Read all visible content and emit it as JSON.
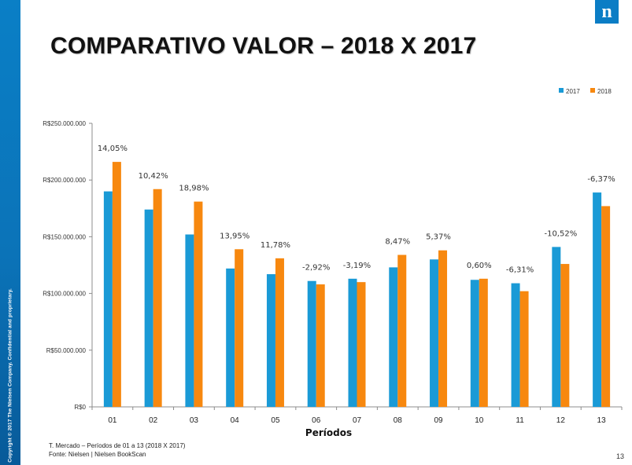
{
  "sidebar": {
    "copyright": "Copyright © 2017 The Nielsen Company. Confidential and proprietary."
  },
  "logo": {
    "text": "n"
  },
  "header": {
    "title": "COMPARATIVO VALOR – 2018 X 2017"
  },
  "colors": {
    "series_2017": "#1a9ad6",
    "series_2018": "#f7880f",
    "brand": "#0b7dc5"
  },
  "chart_data": {
    "type": "bar",
    "title": "",
    "xlabel": "Períodos",
    "ylabel": "",
    "categories": [
      "01",
      "02",
      "03",
      "04",
      "05",
      "06",
      "07",
      "08",
      "09",
      "10",
      "11",
      "12",
      "13"
    ],
    "series": [
      {
        "name": "2017",
        "values": [
          190000000,
          174000000,
          152000000,
          122000000,
          117000000,
          111000000,
          113000000,
          123000000,
          130000000,
          112000000,
          109000000,
          141000000,
          189000000
        ]
      },
      {
        "name": "2018",
        "values": [
          216000000,
          192000000,
          181000000,
          139000000,
          131000000,
          108000000,
          110000000,
          134000000,
          138000000,
          113000000,
          102000000,
          126000000,
          177000000
        ]
      }
    ],
    "data_labels": [
      "14,05%",
      "10,42%",
      "18,98%",
      "13,95%",
      "11,78%",
      "-2,92%",
      "-3,19%",
      "8,47%",
      "5,37%",
      "0,60%",
      "-6,31%",
      "-10,52%",
      "-6,37%"
    ],
    "ylim": [
      0,
      250000000
    ],
    "yticks": [
      0,
      50000000,
      100000000,
      150000000,
      200000000,
      250000000
    ],
    "ytick_labels": [
      "R$0",
      "R$50.000.000",
      "R$100.000.000",
      "R$150.000.000",
      "R$200.000.000",
      "R$250.000.000"
    ],
    "legend": [
      "2017",
      "2018"
    ],
    "legend_position": "top-right",
    "grid": false
  },
  "footer": {
    "note": "T. Mercado – Períodos de 01 a 13 (2018 X 2017)",
    "source": "Fonte: Nielsen | Nielsen BookScan"
  },
  "page_number": "13"
}
